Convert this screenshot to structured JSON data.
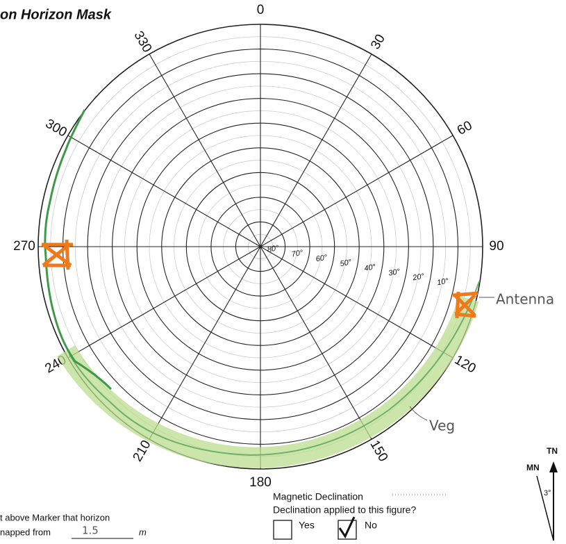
{
  "title": "on Horizon Mask",
  "azimuth_labels": [
    "0",
    "30",
    "60",
    "90",
    "120",
    "150",
    "180",
    "210",
    "240",
    "270",
    "300",
    "330"
  ],
  "elevation_labels": [
    "80°",
    "70°",
    "60°",
    "50°",
    "40°",
    "30°",
    "20°",
    "10°"
  ],
  "annotations": {
    "antenna": "Antenna",
    "vegetation": "Veg"
  },
  "footer": {
    "height_line1": "t above Marker that horizon",
    "height_line2": "napped from",
    "height_value": "1.5",
    "height_unit": "m",
    "magnetic_declination": "Magnetic Declination",
    "declination_question": "Declination applied to this figure?",
    "yes": "Yes",
    "no": "No"
  },
  "compass": {
    "true_north": "TN",
    "magnetic_north": "MN",
    "declination": "3°"
  }
}
